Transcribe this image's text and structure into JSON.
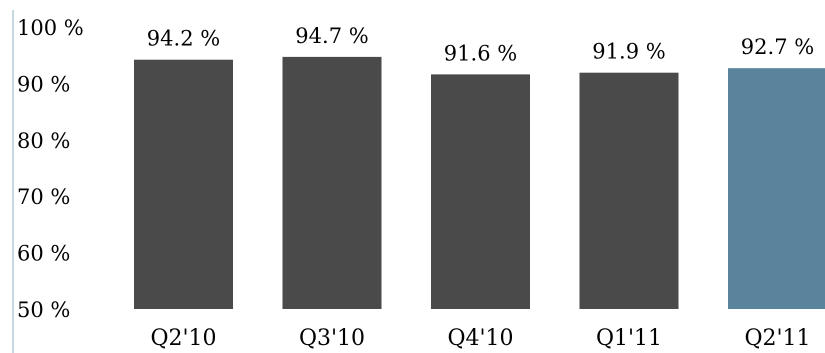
{
  "chart_data": {
    "type": "bar",
    "title": "",
    "xlabel": "",
    "ylabel": "",
    "ylim": [
      50,
      100
    ],
    "yticks": [
      50,
      60,
      70,
      80,
      90,
      100
    ],
    "ytick_labels": [
      "50 %",
      "60 %",
      "70 %",
      "80 %",
      "90 %",
      "100 %"
    ],
    "categories": [
      "Q2'10",
      "Q3'10",
      "Q4'10",
      "Q1'11",
      "Q2'11"
    ],
    "values": [
      94.2,
      94.7,
      91.6,
      91.9,
      92.7
    ],
    "value_labels": [
      "94.2 %",
      "94.7 %",
      "91.6 %",
      "91.9 %",
      "92.7 %"
    ],
    "grid": false,
    "legend": "none",
    "colors": [
      "#4a4a4a",
      "#4a4a4a",
      "#4a4a4a",
      "#4a4a4a",
      "#5a839c"
    ],
    "axis_color": "#8fb0c0"
  }
}
